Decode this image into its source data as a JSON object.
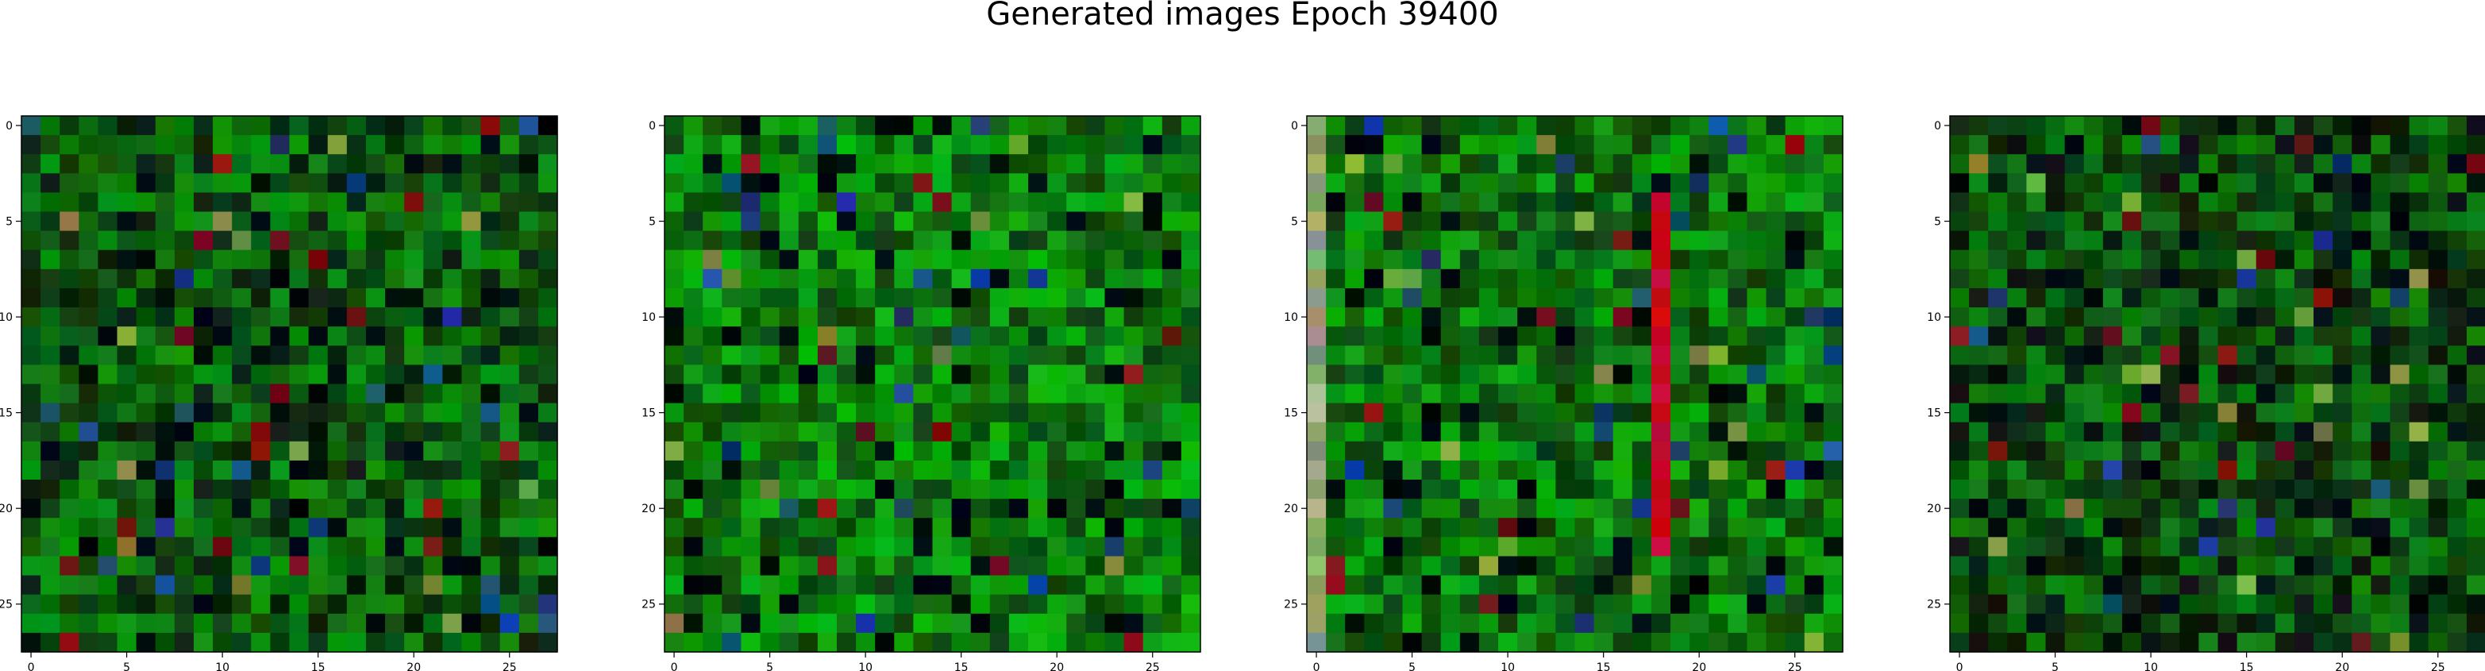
{
  "figure": {
    "title": "Generated images Epoch 39400",
    "background": "#ffffff"
  },
  "chart_data": [
    {
      "type": "heatmap",
      "grid": false,
      "size": [
        28,
        28
      ],
      "seed": 11,
      "tone": "dark-green",
      "xticks": [
        0,
        5,
        10,
        15,
        20,
        25
      ],
      "yticks": [
        0,
        5,
        10,
        15,
        20,
        25
      ],
      "xlim": [
        -0.5,
        27.5
      ],
      "ylim": [
        27.5,
        -0.5
      ]
    },
    {
      "type": "heatmap",
      "grid": false,
      "size": [
        28,
        28
      ],
      "seed": 23,
      "tone": "green",
      "xticks": [
        0,
        5,
        10,
        15,
        20,
        25
      ],
      "yticks": [
        0,
        5,
        10,
        15,
        20,
        25
      ],
      "xlim": [
        -0.5,
        27.5
      ],
      "ylim": [
        27.5,
        -0.5
      ]
    },
    {
      "type": "heatmap",
      "grid": false,
      "size": [
        28,
        28
      ],
      "seed": 37,
      "tone": "green-red-stripe",
      "stripe_col": 18,
      "stripe_rows": [
        4,
        22
      ],
      "xticks": [
        0,
        5,
        10,
        15,
        20,
        25
      ],
      "yticks": [
        0,
        5,
        10,
        15,
        20,
        25
      ],
      "xlim": [
        -0.5,
        27.5
      ],
      "ylim": [
        27.5,
        -0.5
      ]
    },
    {
      "type": "heatmap",
      "grid": false,
      "size": [
        28,
        28
      ],
      "seed": 51,
      "tone": "very-dark-green",
      "xticks": [
        0,
        5,
        10,
        15,
        20,
        25
      ],
      "yticks": [
        0,
        5,
        10,
        15,
        20,
        25
      ],
      "xlim": [
        -0.5,
        27.5
      ],
      "ylim": [
        27.5,
        -0.5
      ]
    }
  ]
}
